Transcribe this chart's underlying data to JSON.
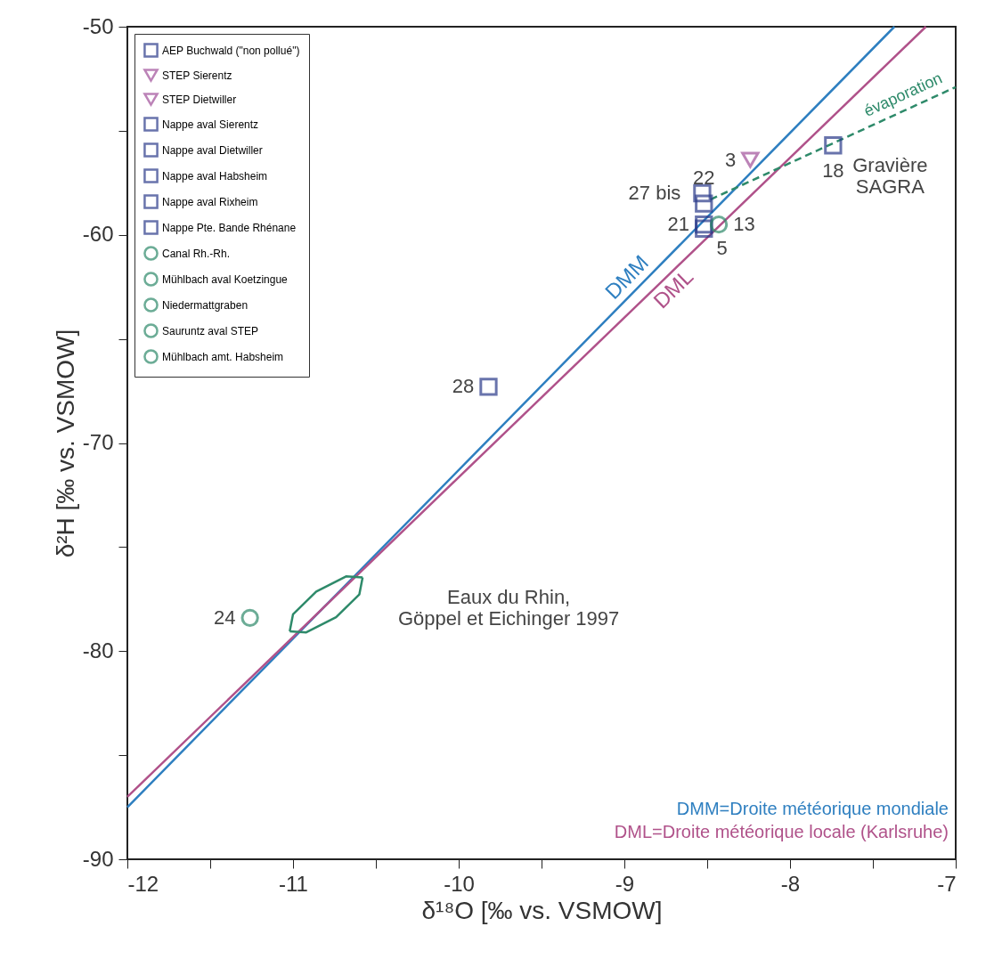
{
  "chart_data": {
    "type": "scatter",
    "xlabel": "δ¹⁸O [‰ vs. VSMOW]",
    "ylabel": "δ²H [‰ vs. VSMOW]",
    "xlim": [
      -12,
      -7
    ],
    "ylim": [
      -90,
      -50
    ],
    "xticks": [
      -12,
      {
        "value": -11.5,
        "label": null
      },
      -11,
      {
        "value": -10.5,
        "label": null
      },
      -10,
      {
        "value": -9.5,
        "label": null
      },
      -9,
      {
        "value": -8.5,
        "label": null
      },
      -8,
      {
        "value": -7.5,
        "label": null
      },
      -7
    ],
    "yticks": [
      -90,
      {
        "value": -85,
        "label": null
      },
      -80,
      {
        "value": -75,
        "label": null
      },
      -70,
      {
        "value": -65,
        "label": null
      },
      -60,
      {
        "value": -55,
        "label": null
      },
      -50
    ],
    "grid": false,
    "legend": "top left",
    "series": [
      {
        "type": "line",
        "name": "DMM",
        "color": "#2e7fc0",
        "x": [
          -12,
          -8.92,
          -7.37
        ],
        "values": [
          -87.5,
          -62.55,
          -50
        ]
      },
      {
        "type": "line",
        "name": "DML",
        "color": "#b0528a",
        "x": [
          -12,
          -8.76,
          -7.18
        ],
        "values": [
          -87,
          -62.13,
          -50
        ]
      },
      {
        "type": "line",
        "name": "évaporation",
        "color": "#2e8a6a",
        "line_style": "dashed",
        "x": [
          -8.48,
          -7.28,
          -7
        ],
        "values": [
          -58.3,
          -53.92,
          -52.9
        ]
      },
      {
        "type": "line",
        "color": "#2e8a6a",
        "x": [
          -11.02,
          -11.0,
          -10.86,
          -10.68,
          -10.58
        ],
        "values": [
          -79.05,
          -78.23,
          -77.14,
          -76.41,
          -76.46
        ]
      },
      {
        "type": "line",
        "color": "#2e8a6a",
        "x": [
          -11.02,
          -10.92,
          -10.74,
          -10.6,
          -10.58
        ],
        "values": [
          -79.05,
          -79.1,
          -78.37,
          -77.28,
          -76.46
        ]
      },
      {
        "name": "AEP Buchwald (\"non pollué\")",
        "marker": "square",
        "color": "#2a3a8a",
        "x": [
          -8.52
        ],
        "values": [
          -59.5
        ]
      },
      {
        "name": "STEP Sierentz",
        "marker": "triangle",
        "color": "#a0509a",
        "x": [
          -8.24
        ],
        "values": [
          -56.4
        ]
      },
      {
        "name": "STEP Dietwiller",
        "marker": "triangle",
        "color": "#a0509a"
      },
      {
        "name": "Nappe aval Sierentz",
        "marker": "square",
        "color": "#2a3a8a"
      },
      {
        "name": "Nappe aval Dietwiller",
        "marker": "square",
        "color": "#2a3a8a",
        "x": [
          -8.52
        ],
        "values": [
          -59.7
        ]
      },
      {
        "name": "Nappe aval Habsheim",
        "marker": "square",
        "color": "#2a3a8a",
        "x": [
          -8.53,
          -7.74
        ],
        "values": [
          -58.0,
          -55.7
        ]
      },
      {
        "name": "Nappe aval Rixheim",
        "marker": "square",
        "color": "#2a3a8a",
        "x": [
          -8.52
        ],
        "values": [
          -58.5
        ]
      },
      {
        "name": "Nappe Pte. Bande Rhénane",
        "marker": "square",
        "color": "#2a3a8a",
        "x": [
          -9.82
        ],
        "values": [
          -67.3
        ]
      },
      {
        "name": "Canal Rh.-Rh.",
        "marker": "circle",
        "color": "#2e8a6a",
        "x": [
          -11.26
        ],
        "values": [
          -78.4
        ]
      },
      {
        "name": "Mühlbach aval Koetzingue",
        "marker": "circle",
        "color": "#2e8a6a"
      },
      {
        "name": "Niedermattgraben",
        "marker": "circle",
        "color": "#2e8a6a"
      },
      {
        "name": "Sauruntz aval STEP",
        "marker": "circle",
        "color": "#2e8a6a",
        "x": [
          -8.43
        ],
        "values": [
          -59.5
        ]
      },
      {
        "name": "Mühlbach amt. Habsheim",
        "marker": "circle",
        "color": "#2e8a6a"
      }
    ],
    "annotations": [
      {
        "text": "3",
        "x": -8.24,
        "y": -56.4
      },
      {
        "text": "18",
        "x": -7.74,
        "y": -55.7
      },
      {
        "text": "Gravière\nSAGRA",
        "x": -7.74,
        "y": -55.7
      },
      {
        "text": "27 bis",
        "x": -8.53,
        "y": -58.0
      },
      {
        "text": "22",
        "x": -8.52,
        "y": -58.5
      },
      {
        "text": "21",
        "x": -8.52,
        "y": -59.5
      },
      {
        "text": "5",
        "x": -8.52,
        "y": -59.7
      },
      {
        "text": "13",
        "x": -8.43,
        "y": -59.5
      },
      {
        "text": "28",
        "x": -9.82,
        "y": -67.3
      },
      {
        "text": "24",
        "x": -11.26,
        "y": -78.4
      },
      {
        "text": "Eaux du Rhin,\nGöppel et Eichinger 1997",
        "x": -10.58,
        "y": -76.46
      },
      "DMM=Droite météorique mondiale",
      "DML=Droite météorique locale (Karlsruhe)"
    ]
  }
}
